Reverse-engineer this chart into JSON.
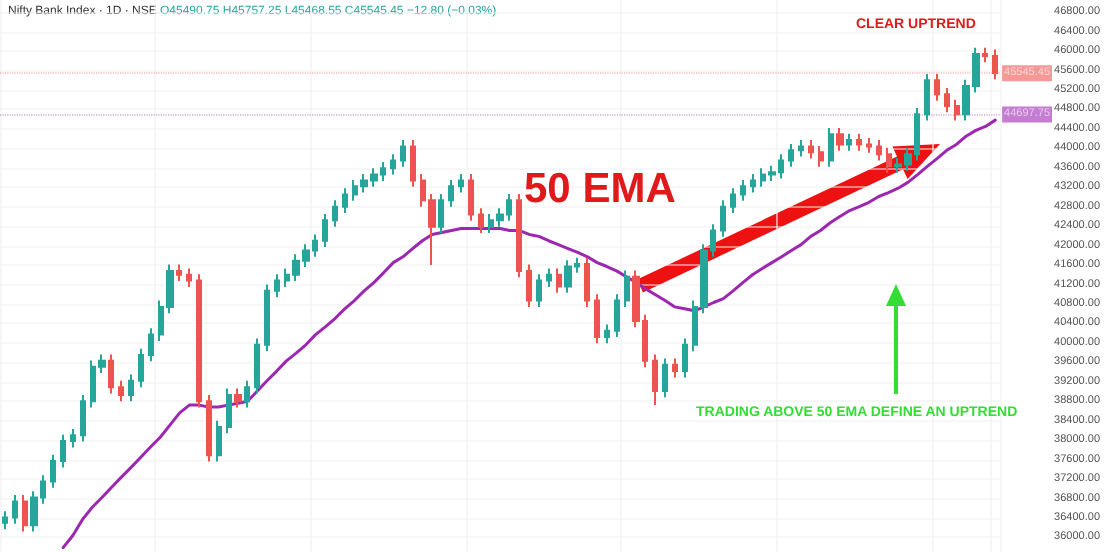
{
  "chart_data": {
    "type": "candlestick",
    "title": "Nifty Bank Index · 1D · NSE",
    "subtitle": "O45490.75 H45757.25 L45468.55 C45545.45 −12.80 (−0.03%)",
    "annotations": [
      "50 EMA",
      "CLEAR UPTREND",
      "TRADING ABOVE 50 EMA DEFINE AN UPTREND"
    ],
    "categories": [
      null,
      null,
      null,
      null,
      null,
      null,
      null,
      null,
      null,
      null,
      null,
      null,
      null,
      null,
      null,
      null,
      null,
      null,
      null,
      null,
      null,
      null,
      null,
      null,
      null,
      null,
      null,
      null,
      null,
      null,
      null,
      null,
      null,
      null,
      null,
      null,
      null,
      null,
      null,
      null,
      null,
      null,
      null,
      null,
      null,
      null,
      null,
      null,
      null,
      null,
      null,
      null,
      null,
      null,
      null,
      null,
      null,
      null,
      null,
      null,
      null,
      null,
      null,
      null,
      null,
      null,
      null,
      null,
      null,
      null,
      null,
      null,
      null,
      null,
      null,
      null,
      null,
      null,
      null,
      null,
      null,
      null,
      null,
      null,
      null,
      null,
      null,
      null,
      null,
      null,
      null,
      null,
      null,
      null,
      null,
      null,
      null,
      null,
      null,
      null,
      null,
      null,
      null
    ],
    "colors": [
      "#26a69a",
      "#26a69a",
      "#ef5350",
      "#26a69a",
      "#26a69a",
      "#26a69a",
      "#26a69a",
      "#26a69a",
      "#26a69a",
      "#26a69a",
      "#26a69a",
      "#ef5350",
      "#ef5350",
      "#26a69a",
      "#26a69a",
      "#26a69a",
      "#26a69a",
      "#26a69a",
      "#ef5350",
      "#ef5350",
      "#ef5350",
      "#ef5350",
      "#26a69a",
      "#26a69a",
      "#ef5350",
      "#26a69a",
      "#26a69a",
      "#26a69a",
      "#26a69a",
      "#26a69a",
      "#26a69a",
      "#26a69a",
      "#26a69a",
      "#26a69a",
      "#26a69a",
      "#26a69a",
      "#26a69a",
      "#26a69a",
      "#26a69a",
      "#26a69a",
      "#26a69a",
      "#26a69a",
      "#ef5350",
      "#ef5350",
      "#ef5350",
      "#26a69a",
      "#26a69a",
      "#26a69a",
      "#ef5350",
      "#ef5350",
      "#26a69a",
      "#26a69a",
      "#26a69a",
      "#ef5350",
      "#ef5350",
      "#26a69a",
      "#26a69a",
      "#ef5350",
      "#26a69a",
      "#26a69a",
      "#ef5350",
      "#ef5350",
      "#26a69a",
      "#26a69a",
      "#26a69a",
      "#ef5350",
      "#ef5350",
      "#ef5350",
      "#26a69a",
      "#ef5350",
      "#26a69a",
      "#26a69a",
      "#26a69a",
      "#26a69a",
      "#26a69a",
      "#26a69a",
      "#26a69a",
      "#26a69a",
      "#26a69a",
      "#26a69a",
      "#26a69a",
      "#26a69a",
      "#26a69a",
      "#ef5350",
      "#ef5350",
      "#26a69a",
      "#ef5350",
      "#26a69a",
      "#ef5350",
      "#ef5350",
      "#ef5350",
      "#ef5350",
      "#26a69a",
      "#26a69a",
      "#26a69a",
      "#26a69a",
      "#ef5350",
      "#ef5350",
      "#ef5350",
      "#26a69a",
      "#26a69a",
      "#ef5350",
      "#ef5350"
    ],
    "ohlc": [
      [
        36300,
        36540,
        36170,
        36410
      ],
      [
        36410,
        36870,
        36280,
        36740
      ],
      [
        36740,
        36870,
        36120,
        36250
      ],
      [
        36250,
        36950,
        36120,
        36820
      ],
      [
        36820,
        37280,
        36690,
        37150
      ],
      [
        37150,
        37700,
        37020,
        37570
      ],
      [
        37570,
        38110,
        37440,
        37980
      ],
      [
        37980,
        38230,
        37850,
        38100
      ],
      [
        38100,
        38930,
        37970,
        38800
      ],
      [
        38800,
        39640,
        38670,
        39510
      ],
      [
        39510,
        39760,
        39380,
        39630
      ],
      [
        39630,
        39760,
        38960,
        39090
      ],
      [
        39090,
        39220,
        38800,
        38930
      ],
      [
        38930,
        39350,
        38800,
        39220
      ],
      [
        39220,
        39880,
        39090,
        39750
      ],
      [
        39750,
        40300,
        39620,
        40170
      ],
      [
        40170,
        40870,
        40040,
        40740
      ],
      [
        40740,
        41610,
        40610,
        41480
      ],
      [
        41480,
        41610,
        41270,
        41400
      ],
      [
        41400,
        41530,
        41150,
        41280
      ],
      [
        41280,
        41410,
        38670,
        38800
      ],
      [
        38800,
        38930,
        37560,
        37690
      ],
      [
        37690,
        38400,
        37560,
        38270
      ],
      [
        38270,
        39060,
        38140,
        38930
      ],
      [
        38930,
        39060,
        38670,
        38800
      ],
      [
        38800,
        39220,
        38670,
        39090
      ],
      [
        39090,
        40090,
        38960,
        39960
      ],
      [
        39960,
        41200,
        39830,
        41070
      ],
      [
        41070,
        41410,
        40940,
        41280
      ],
      [
        41280,
        41530,
        41150,
        41400
      ],
      [
        41400,
        41820,
        41270,
        41690
      ],
      [
        41690,
        42030,
        41560,
        41900
      ],
      [
        41900,
        42230,
        41770,
        42100
      ],
      [
        42100,
        42650,
        41970,
        42520
      ],
      [
        42520,
        42930,
        42390,
        42800
      ],
      [
        42800,
        43180,
        42670,
        43050
      ],
      [
        43050,
        43350,
        42920,
        43220
      ],
      [
        43220,
        43470,
        43090,
        43340
      ],
      [
        43340,
        43590,
        43210,
        43460
      ],
      [
        43460,
        43720,
        43330,
        43590
      ],
      [
        43590,
        43880,
        43460,
        43750
      ],
      [
        43750,
        44170,
        43620,
        44040
      ],
      [
        44040,
        44170,
        43210,
        43340
      ],
      [
        43340,
        43470,
        42800,
        42930
      ],
      [
        42930,
        43060,
        41600,
        42390
      ],
      [
        42390,
        43060,
        42260,
        42930
      ],
      [
        42930,
        43350,
        42800,
        43220
      ],
      [
        43220,
        43470,
        43090,
        43340
      ],
      [
        43340,
        43470,
        42510,
        42640
      ],
      [
        42640,
        42770,
        42260,
        42390
      ],
      [
        42390,
        42650,
        42260,
        42520
      ],
      [
        42520,
        42770,
        42390,
        42640
      ],
      [
        42640,
        43060,
        42510,
        42930
      ],
      [
        42930,
        43060,
        41350,
        41480
      ],
      [
        41480,
        41610,
        40740,
        40870
      ],
      [
        40870,
        41410,
        40740,
        41280
      ],
      [
        41280,
        41530,
        41150,
        41400
      ],
      [
        41400,
        41530,
        41030,
        41160
      ],
      [
        41160,
        41700,
        41030,
        41570
      ],
      [
        41570,
        41750,
        41440,
        41620
      ],
      [
        41620,
        41750,
        40740,
        40870
      ],
      [
        40870,
        41000,
        39990,
        40120
      ],
      [
        40120,
        40380,
        39990,
        40250
      ],
      [
        40250,
        41000,
        40120,
        40870
      ],
      [
        40870,
        41490,
        40740,
        41360
      ],
      [
        41360,
        41490,
        40320,
        40450
      ],
      [
        40450,
        40580,
        39500,
        39630
      ],
      [
        39630,
        39760,
        38720,
        39010
      ],
      [
        39010,
        39680,
        38880,
        39550
      ],
      [
        39550,
        39680,
        39290,
        39420
      ],
      [
        39420,
        40090,
        39290,
        39960
      ],
      [
        39960,
        40870,
        39830,
        40740
      ],
      [
        40740,
        42030,
        40610,
        41900
      ],
      [
        41900,
        42440,
        41770,
        42310
      ],
      [
        42310,
        42930,
        42180,
        42800
      ],
      [
        42800,
        43180,
        42670,
        43050
      ],
      [
        43050,
        43350,
        42920,
        43220
      ],
      [
        43220,
        43470,
        43090,
        43340
      ],
      [
        43340,
        43590,
        43210,
        43460
      ],
      [
        43460,
        43640,
        43330,
        43510
      ],
      [
        43510,
        43880,
        43380,
        43750
      ],
      [
        43750,
        44090,
        43620,
        43960
      ],
      [
        43960,
        44170,
        43830,
        44040
      ],
      [
        44040,
        44170,
        43790,
        43920
      ],
      [
        43920,
        44050,
        43620,
        43750
      ],
      [
        43750,
        44420,
        43620,
        44290
      ],
      [
        44290,
        44420,
        43950,
        44080
      ],
      [
        44080,
        44300,
        43950,
        44170
      ],
      [
        44170,
        44300,
        43950,
        44080
      ],
      [
        44080,
        44210,
        43910,
        44040
      ],
      [
        44040,
        44170,
        43750,
        43880
      ],
      [
        43880,
        44010,
        43500,
        43630
      ],
      [
        43630,
        43800,
        43500,
        43670
      ],
      [
        43670,
        44010,
        43540,
        43880
      ],
      [
        43880,
        44830,
        43750,
        44700
      ],
      [
        44700,
        45530,
        44570,
        45400
      ],
      [
        45400,
        45530,
        44980,
        45110
      ],
      [
        45110,
        45240,
        44740,
        44870
      ],
      [
        44870,
        45000,
        44570,
        44700
      ],
      [
        44700,
        45410,
        44570,
        45280
      ],
      [
        45280,
        46070,
        45150,
        45940
      ],
      [
        45940,
        46070,
        45770,
        45900
      ],
      [
        45900,
        46030,
        45420,
        45550
      ]
    ],
    "series": [
      {
        "type": "line",
        "color": "#9c27b0",
        "values": [
          null,
          null,
          null,
          null,
          null,
          null,
          35790,
          36040,
          36370,
          36620,
          36820,
          37030,
          37240,
          37440,
          37650,
          37860,
          38060,
          38310,
          38560,
          38720,
          38720,
          38680,
          38680,
          38720,
          38760,
          38800,
          39010,
          39220,
          39420,
          39630,
          39790,
          39960,
          40170,
          40330,
          40500,
          40700,
          40870,
          41070,
          41240,
          41440,
          41650,
          41770,
          41940,
          42100,
          42230,
          42270,
          42310,
          42350,
          42350,
          42350,
          42350,
          42350,
          42310,
          42310,
          42230,
          42190,
          42100,
          42020,
          41940,
          41860,
          41770,
          41650,
          41570,
          41480,
          41360,
          41240,
          41110,
          40990,
          40870,
          40740,
          40700,
          40660,
          40740,
          40830,
          40910,
          41070,
          41240,
          41400,
          41530,
          41650,
          41770,
          41900,
          42020,
          42190,
          42310,
          42470,
          42600,
          42720,
          42800,
          42890,
          43010,
          43090,
          43180,
          43300,
          43460,
          43630,
          43790,
          43960,
          44080,
          44250,
          44370,
          44450,
          44580
        ]
      }
    ],
    "ref_lines": [
      {
        "axis": "y",
        "value": 45545.45,
        "label": "45545.45",
        "color": "#ef5350",
        "line_style": "dotted"
      },
      {
        "axis": "y",
        "value": 44697.75,
        "label": "44697.75",
        "color": "#9c27b0",
        "line_style": "dotted"
      }
    ],
    "ylim": [
      35700,
      47050
    ],
    "yticks": [
      {
        "value": 36000,
        "label": "36000.00"
      },
      {
        "value": 36400,
        "label": "36400.00"
      },
      {
        "value": 36800,
        "label": "36800.00"
      },
      {
        "value": 37200,
        "label": "37200.00"
      },
      {
        "value": 37600,
        "label": "37600.00"
      },
      {
        "value": 38000,
        "label": "38000.00"
      },
      {
        "value": 38400,
        "label": "38400.00"
      },
      {
        "value": 38800,
        "label": "38800.00"
      },
      {
        "value": 39200,
        "label": "39200.00"
      },
      {
        "value": 39600,
        "label": "39600.00"
      },
      {
        "value": 40000,
        "label": "40000.00"
      },
      {
        "value": 40400,
        "label": "40400.00"
      },
      {
        "value": 40800,
        "label": "40800.00"
      },
      {
        "value": 41200,
        "label": "41200.00"
      },
      {
        "value": 41600,
        "label": "41600.00"
      },
      {
        "value": 42000,
        "label": "42000.00"
      },
      {
        "value": 42400,
        "label": "42400.00"
      },
      {
        "value": 42800,
        "label": "42800.00"
      },
      {
        "value": 43200,
        "label": "43200.00"
      },
      {
        "value": 43600,
        "label": "43600.00"
      },
      {
        "value": 44000,
        "label": "44000.00"
      },
      {
        "value": 44400,
        "label": "44400.00"
      },
      {
        "value": 44800,
        "label": "44800.00"
      },
      {
        "value": 45200,
        "label": "45200.00"
      },
      {
        "value": 45600,
        "label": "45600.00"
      },
      {
        "value": 46000,
        "label": "46000.00"
      },
      {
        "value": 46400,
        "label": "46400.00"
      },
      {
        "value": 46800,
        "label": "46800.00"
      }
    ],
    "grid": true,
    "tick_labels": "y",
    "marker": "none",
    "line_style": "solid"
  }
}
